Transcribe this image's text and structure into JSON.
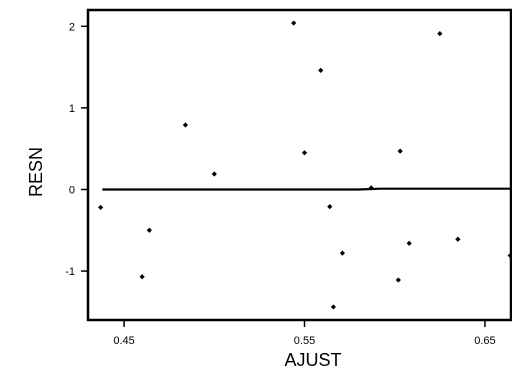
{
  "chart_data": {
    "type": "scatter",
    "title": "",
    "xlabel": "AJUST",
    "ylabel": "RESN",
    "xlim": [
      0.43,
      0.665
    ],
    "ylim": [
      -1.6,
      2.2
    ],
    "xticks": [
      0.45,
      0.55,
      0.65
    ],
    "xtick_labels": [
      "0.45",
      "0.55",
      "0.65"
    ],
    "yticks": [
      -1,
      0,
      1,
      2
    ],
    "ytick_labels": [
      "-1",
      "0",
      "1",
      "2"
    ],
    "grid": false,
    "points": [
      {
        "x": 0.437,
        "y": -0.22
      },
      {
        "x": 0.46,
        "y": -1.07
      },
      {
        "x": 0.464,
        "y": -0.5
      },
      {
        "x": 0.484,
        "y": 0.79
      },
      {
        "x": 0.5,
        "y": 0.19
      },
      {
        "x": 0.544,
        "y": 2.04
      },
      {
        "x": 0.55,
        "y": 0.45
      },
      {
        "x": 0.559,
        "y": 1.46
      },
      {
        "x": 0.564,
        "y": -0.21
      },
      {
        "x": 0.571,
        "y": -0.78
      },
      {
        "x": 0.566,
        "y": -1.44
      },
      {
        "x": 0.587,
        "y": 0.02
      },
      {
        "x": 0.602,
        "y": -1.11
      },
      {
        "x": 0.603,
        "y": 0.47
      },
      {
        "x": 0.608,
        "y": -0.66
      },
      {
        "x": 0.625,
        "y": 1.91
      },
      {
        "x": 0.635,
        "y": -0.61
      },
      {
        "x": 0.664,
        "y": -0.81
      }
    ],
    "fit_line": [
      {
        "x": 0.438,
        "y": 0.0
      },
      {
        "x": 0.58,
        "y": 0.0
      },
      {
        "x": 0.592,
        "y": 0.01
      },
      {
        "x": 0.665,
        "y": 0.01
      }
    ]
  }
}
